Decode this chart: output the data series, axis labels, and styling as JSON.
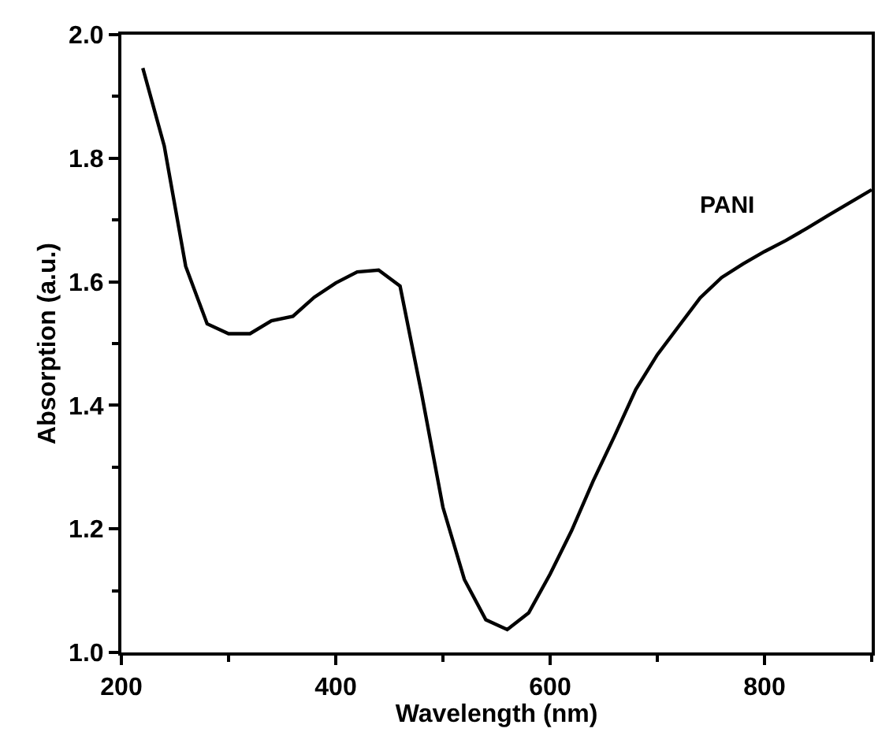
{
  "chart_data": {
    "type": "line",
    "xlabel": "Wavelength (nm)",
    "ylabel": "Absorption (a.u.)",
    "x": [
      220,
      240,
      260,
      280,
      300,
      320,
      340,
      360,
      380,
      400,
      420,
      440,
      460,
      480,
      500,
      520,
      540,
      560,
      580,
      600,
      620,
      640,
      660,
      680,
      700,
      720,
      740,
      760,
      780,
      800,
      820,
      840,
      860,
      900
    ],
    "series": [
      {
        "name": "PANI",
        "color": "#000000",
        "values": [
          1.946,
          1.82,
          1.625,
          1.532,
          1.516,
          1.516,
          1.537,
          1.544,
          1.575,
          1.598,
          1.616,
          1.619,
          1.593,
          1.42,
          1.235,
          1.118,
          1.053,
          1.037,
          1.064,
          1.127,
          1.197,
          1.277,
          1.35,
          1.426,
          1.482,
          1.528,
          1.574,
          1.607,
          1.629,
          1.649,
          1.667,
          1.687,
          1.708,
          1.749
        ]
      }
    ],
    "xlim": [
      200,
      900
    ],
    "ylim": [
      1.0,
      2.0
    ],
    "xticks": [
      200,
      {
        "value": 300,
        "label": null
      },
      400,
      {
        "value": 500,
        "label": null
      },
      600,
      {
        "value": 700,
        "label": null
      },
      800,
      {
        "value": 900,
        "label": null
      }
    ],
    "yticks": [
      {
        "value": 1.0,
        "label": "1.0"
      },
      {
        "value": 1.1,
        "label": null
      },
      {
        "value": 1.2,
        "label": "1.2"
      },
      {
        "value": 1.3,
        "label": null
      },
      {
        "value": 1.4,
        "label": "1.4"
      },
      {
        "value": 1.5,
        "label": null
      },
      {
        "value": 1.6,
        "label": "1.6"
      },
      {
        "value": 1.7,
        "label": null
      },
      {
        "value": 1.8,
        "label": "1.8"
      },
      {
        "value": 1.9,
        "label": null
      },
      {
        "value": 2.0,
        "label": "2.0"
      }
    ],
    "legend": false,
    "marker": "none",
    "line_style": "solid"
  }
}
